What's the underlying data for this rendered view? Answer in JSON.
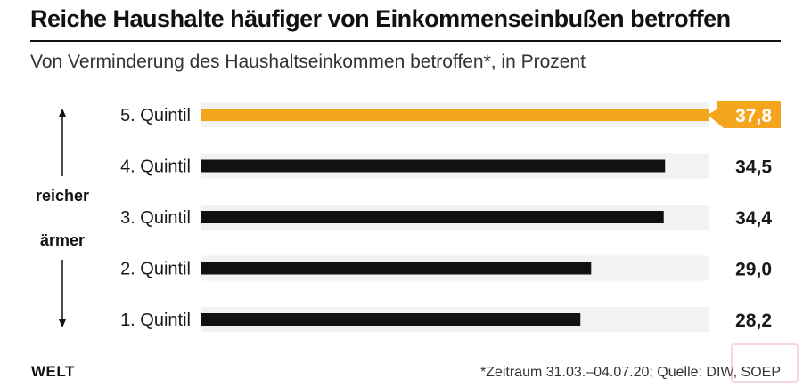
{
  "title": "Reiche Haushalte häufiger von Einkommenseinbußen betroffen",
  "subtitle": "Von Verminderung des Haushaltseinkommen betroffen*, in Prozent",
  "footer": {
    "brand": "WELT",
    "source": "*Zeitraum 31.03.–04.07.20; Quelle: DIW, SOEP"
  },
  "side_labels": {
    "up": "reicher",
    "down": "ärmer"
  },
  "colors": {
    "highlight": "#f5a51d",
    "bar": "#111111",
    "track": "#f2f2f2",
    "highlight_text": "#ffffff",
    "text": "#1a1a1a"
  },
  "chart_data": {
    "type": "bar",
    "orientation": "horizontal",
    "categories": [
      "5. Quintil",
      "4. Quintil",
      "3. Quintil",
      "2. Quintil",
      "1. Quintil"
    ],
    "values": [
      37.8,
      34.5,
      34.4,
      29.0,
      28.2
    ],
    "value_labels": [
      "37,8",
      "34,5",
      "34,4",
      "29,0",
      "28,2"
    ],
    "highlight_index": 0,
    "xlim": [
      0,
      37.8
    ],
    "title": "Reiche Haushalte häufiger von Einkommenseinbußen betroffen",
    "subtitle": "Von Verminderung des Haushaltseinkommen betroffen*, in Prozent",
    "xlabel": "",
    "ylabel": ""
  }
}
